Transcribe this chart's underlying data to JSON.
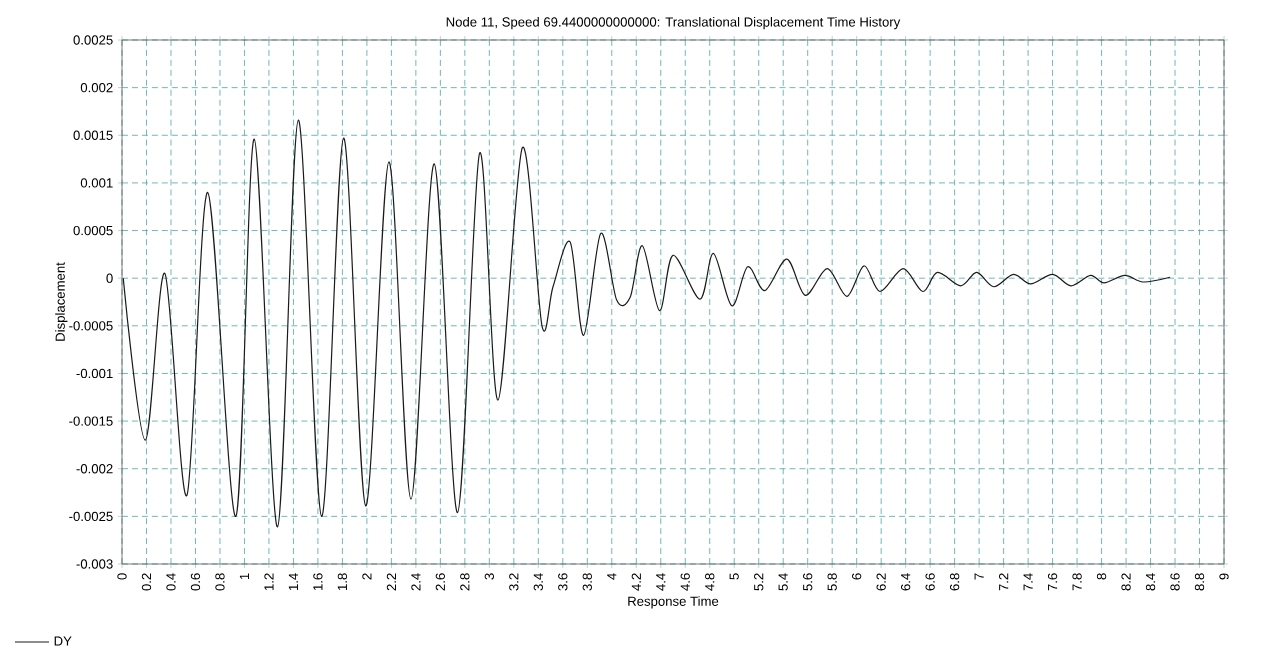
{
  "chart_data": {
    "type": "line",
    "title": "Node 11, Speed 69.4400000000000: Translational Displacement Time History",
    "xlabel": "Response Time",
    "ylabel": "Displacement",
    "xlim": [
      0,
      9
    ],
    "ylim": [
      -0.003,
      0.0025
    ],
    "xticks": [
      0,
      0.2,
      0.4,
      0.6,
      0.8,
      1,
      1.2,
      1.4,
      1.6,
      1.8,
      2,
      2.2,
      2.4,
      2.6,
      2.8,
      3,
      3.2,
      3.4,
      3.6,
      3.8,
      4,
      4.2,
      4.4,
      4.6,
      4.8,
      5,
      5.2,
      5.4,
      5.6,
      5.8,
      6,
      6.2,
      6.4,
      6.6,
      6.8,
      7,
      7.2,
      7.4,
      7.6,
      7.8,
      8,
      8.2,
      8.4,
      8.6,
      8.8,
      9
    ],
    "yticks": [
      -0.003,
      -0.0025,
      -0.002,
      -0.0015,
      -0.001,
      -0.0005,
      0,
      0.0005,
      0.001,
      0.0015,
      0.002,
      0.0025
    ],
    "grid": true,
    "legend": "bottom left",
    "marker": "none",
    "line_style": "solid",
    "series": [
      {
        "name": "DY",
        "color": "#1a1a1a",
        "x": [
          0.01,
          0.19,
          0.35,
          0.53,
          0.7,
          0.93,
          1.08,
          1.27,
          1.44,
          1.63,
          1.81,
          1.99,
          2.18,
          2.36,
          2.55,
          2.74,
          2.92,
          3.07,
          3.27,
          3.43,
          3.52,
          3.66,
          3.77,
          3.91,
          4.04,
          4.15,
          4.25,
          4.39,
          4.5,
          4.72,
          4.83,
          4.98,
          5.11,
          5.25,
          5.43,
          5.58,
          5.76,
          5.92,
          6.06,
          6.19,
          6.38,
          6.54,
          6.66,
          6.85,
          6.98,
          7.12,
          7.28,
          7.42,
          7.6,
          7.75,
          7.91,
          8.02,
          8.19,
          8.34,
          8.56
        ],
        "values": [
          0,
          -0.0017,
          5e-05,
          -0.00228,
          0.0009,
          -0.0025,
          0.00146,
          -0.00261,
          0.00166,
          -0.0025,
          0.00147,
          -0.00239,
          0.00122,
          -0.00232,
          0.0012,
          -0.00246,
          0.00131,
          -0.00128,
          0.00137,
          -0.0005,
          -9e-05,
          0.00038,
          -0.0006,
          0.00047,
          -0.00023,
          -0.0002,
          0.00034,
          -0.00034,
          0.00024,
          -0.00022,
          0.00026,
          -0.00029,
          0.00012,
          -0.00013,
          0.0002,
          -0.00018,
          0.0001,
          -0.00019,
          0.00013,
          -0.00014,
          0.0001,
          -0.00014,
          6e-05,
          -8e-05,
          6e-05,
          -9e-05,
          4e-05,
          -6e-05,
          4e-05,
          -8e-05,
          3e-05,
          -5e-05,
          3e-05,
          -4e-05,
          1e-05
        ]
      }
    ]
  }
}
